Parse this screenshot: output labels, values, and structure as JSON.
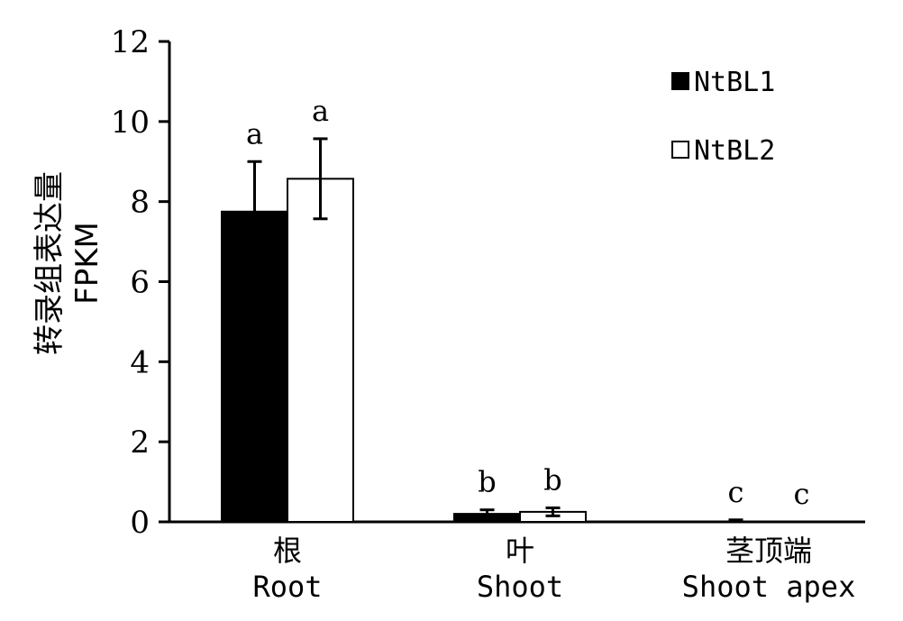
{
  "chart_data": {
    "type": "bar",
    "ylabel_line1": "转录组表达量",
    "ylabel_line2": "FPKM",
    "ylim": [
      0,
      12
    ],
    "yticks": [
      0,
      2,
      4,
      6,
      8,
      10,
      12
    ],
    "categories": [
      {
        "zh": "根",
        "en": "Root"
      },
      {
        "zh": "叶",
        "en": "Shoot"
      },
      {
        "zh": "茎顶端",
        "en": "Shoot apex"
      }
    ],
    "series": [
      {
        "name": "NtBL1",
        "fill": "#000000",
        "values": [
          7.75,
          0.2,
          0.0
        ],
        "errors": [
          1.25,
          0.1,
          0.05
        ],
        "letters": [
          "a",
          "b",
          "c"
        ]
      },
      {
        "name": "NtBL2",
        "fill": "#ffffff",
        "values": [
          8.57,
          0.25,
          0.0
        ],
        "errors": [
          1.0,
          0.1,
          0.0
        ],
        "letters": [
          "a",
          "b",
          "c"
        ]
      }
    ],
    "legend_position": "top-right",
    "grid": false
  }
}
